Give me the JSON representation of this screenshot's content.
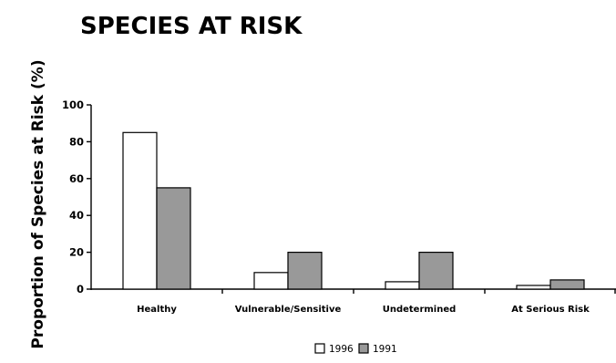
{
  "chart_data": {
    "type": "bar",
    "title": "SPECIES AT RISK",
    "xlabel": "",
    "ylabel": "Proportion of Species at Risk (%)",
    "ylim": [
      0,
      100
    ],
    "yticks": [
      "0",
      "20",
      "40",
      "60",
      "80",
      "100"
    ],
    "categories": [
      "Healthy",
      "Vulnerable/Sensitive",
      "Undetermined",
      "At Serious Risk"
    ],
    "series": [
      {
        "name": "1996",
        "values": [
          85,
          9,
          4,
          2
        ],
        "color": "#ffffff"
      },
      {
        "name": "1991",
        "values": [
          55,
          20,
          20,
          5
        ],
        "color": "#999999"
      }
    ],
    "grid": false,
    "legend_position": "bottom-center"
  }
}
